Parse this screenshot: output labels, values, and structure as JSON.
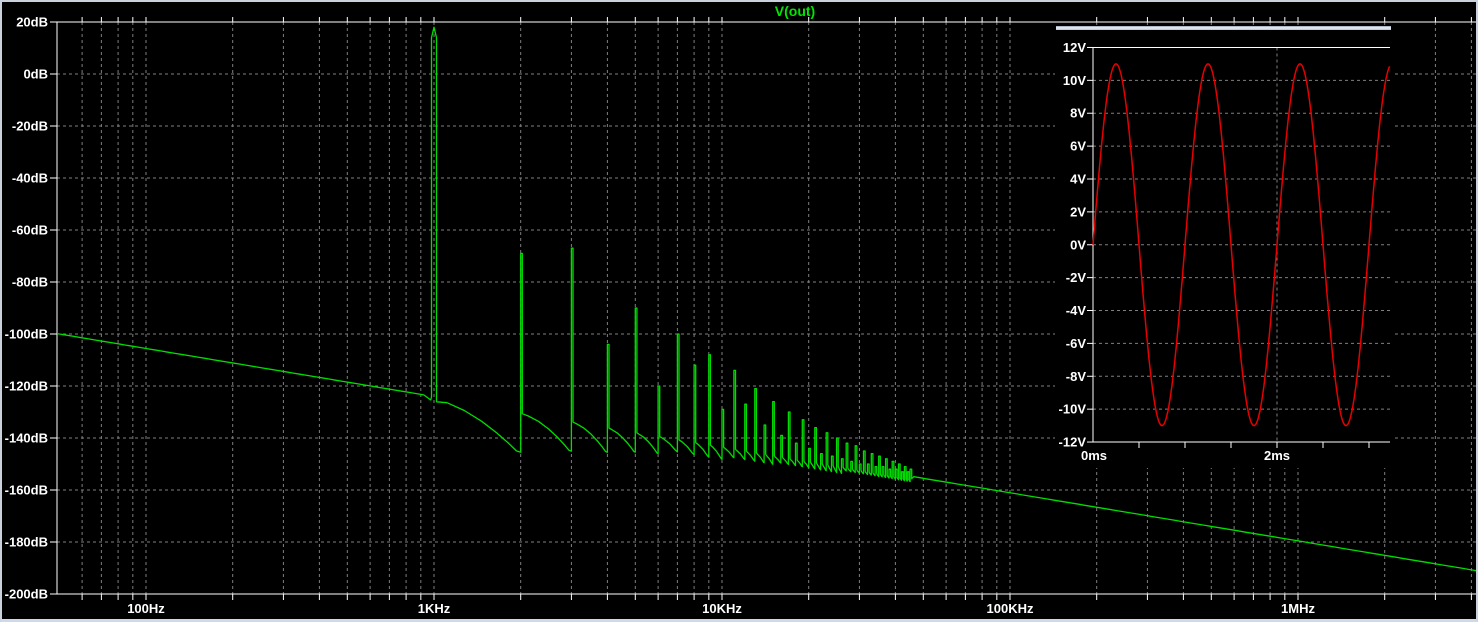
{
  "window": {
    "border_color": "#c9d1dd",
    "background": "#000000"
  },
  "colors": {
    "trace_green": "#00dd00",
    "title_green": "#00e600",
    "trace_red": "#e60000",
    "grid_gray": "#7f7f7f",
    "axis_white": "#ffffff",
    "inset_bar_light": "#eef1f6",
    "inset_bar_dark": "#98a2b2"
  },
  "chart_data": [
    {
      "type": "line",
      "title": "V(out)",
      "subtype": "fft_spectrum",
      "x_scale": "log",
      "grid": "dashed",
      "x_axis": {
        "unit": "Hz",
        "range_hz": [
          50,
          4200000
        ],
        "tick_labels": [
          "100Hz",
          "1KHz",
          "10KHz",
          "100KHz",
          "1MHz"
        ],
        "tick_values_hz": [
          100,
          1000,
          10000,
          100000,
          1000000
        ]
      },
      "y_axis": {
        "unit": "dB",
        "range_db": [
          -200,
          20
        ],
        "tick_labels": [
          "20dB",
          "0dB",
          "-20dB",
          "-40dB",
          "-60dB",
          "-80dB",
          "-100dB",
          "-120dB",
          "-140dB",
          "-160dB",
          "-180dB",
          "-200dB"
        ],
        "tick_values_db": [
          20,
          0,
          -20,
          -40,
          -60,
          -80,
          -100,
          -120,
          -140,
          -160,
          -180,
          -200
        ]
      },
      "series": [
        {
          "name": "V(out)",
          "color": "#00dd00"
        }
      ],
      "noise_floor": {
        "start_hz": 50,
        "start_db": -100,
        "slope_db_per_decade": -18.5
      },
      "fundamental_hz": 1000,
      "harmonics_peaks_db": [
        [
          1,
          18
        ],
        [
          2,
          -69
        ],
        [
          3,
          -67
        ],
        [
          4,
          -104
        ],
        [
          5,
          -90
        ],
        [
          6,
          -120
        ],
        [
          7,
          -100
        ],
        [
          8,
          -112
        ],
        [
          9,
          -108
        ],
        [
          10,
          -129
        ],
        [
          11,
          -114
        ],
        [
          12,
          -127
        ],
        [
          13,
          -121
        ],
        [
          14,
          -135
        ],
        [
          15,
          -126
        ],
        [
          16,
          -139
        ],
        [
          17,
          -130
        ],
        [
          18,
          -142
        ],
        [
          19,
          -133
        ],
        [
          20,
          -144
        ],
        [
          21,
          -136
        ],
        [
          22,
          -146
        ],
        [
          23,
          -138
        ],
        [
          24,
          -147
        ],
        [
          25,
          -140
        ],
        [
          26,
          -148
        ],
        [
          27,
          -142
        ],
        [
          28,
          -149
        ],
        [
          29,
          -143
        ],
        [
          30,
          -150
        ],
        [
          31,
          -145
        ],
        [
          32,
          -150
        ],
        [
          33,
          -146
        ],
        [
          34,
          -151
        ],
        [
          35,
          -147
        ],
        [
          36,
          -151
        ],
        [
          37,
          -148
        ],
        [
          38,
          -152
        ],
        [
          39,
          -149
        ],
        [
          40,
          -152
        ],
        [
          41,
          -150
        ],
        [
          42,
          -153
        ],
        [
          43,
          -151
        ],
        [
          44,
          -153
        ],
        [
          45,
          -152
        ]
      ]
    },
    {
      "type": "line",
      "subtype": "transient_inset",
      "grid": "dashed",
      "x_axis": {
        "unit": "ms",
        "range_ms": [
          0,
          3.23
        ],
        "tick_labels": [
          "0ms",
          "2ms"
        ],
        "tick_values_ms": [
          0,
          2
        ]
      },
      "y_axis": {
        "unit": "V",
        "range_v": [
          -12,
          12
        ],
        "tick_labels": [
          "12V",
          "10V",
          "8V",
          "6V",
          "4V",
          "2V",
          "0V",
          "-2V",
          "-4V",
          "-6V",
          "-8V",
          "-10V",
          "-12V"
        ],
        "tick_values_v": [
          12,
          10,
          8,
          6,
          4,
          2,
          0,
          -2,
          -4,
          -6,
          -8,
          -10,
          -12
        ]
      },
      "series": [
        {
          "name": "V(out)",
          "color": "#e60000",
          "waveform": "sine",
          "amplitude_v": 11,
          "frequency_hz": 1000,
          "offset_v": 0,
          "phase_deg": 0
        }
      ]
    }
  ]
}
